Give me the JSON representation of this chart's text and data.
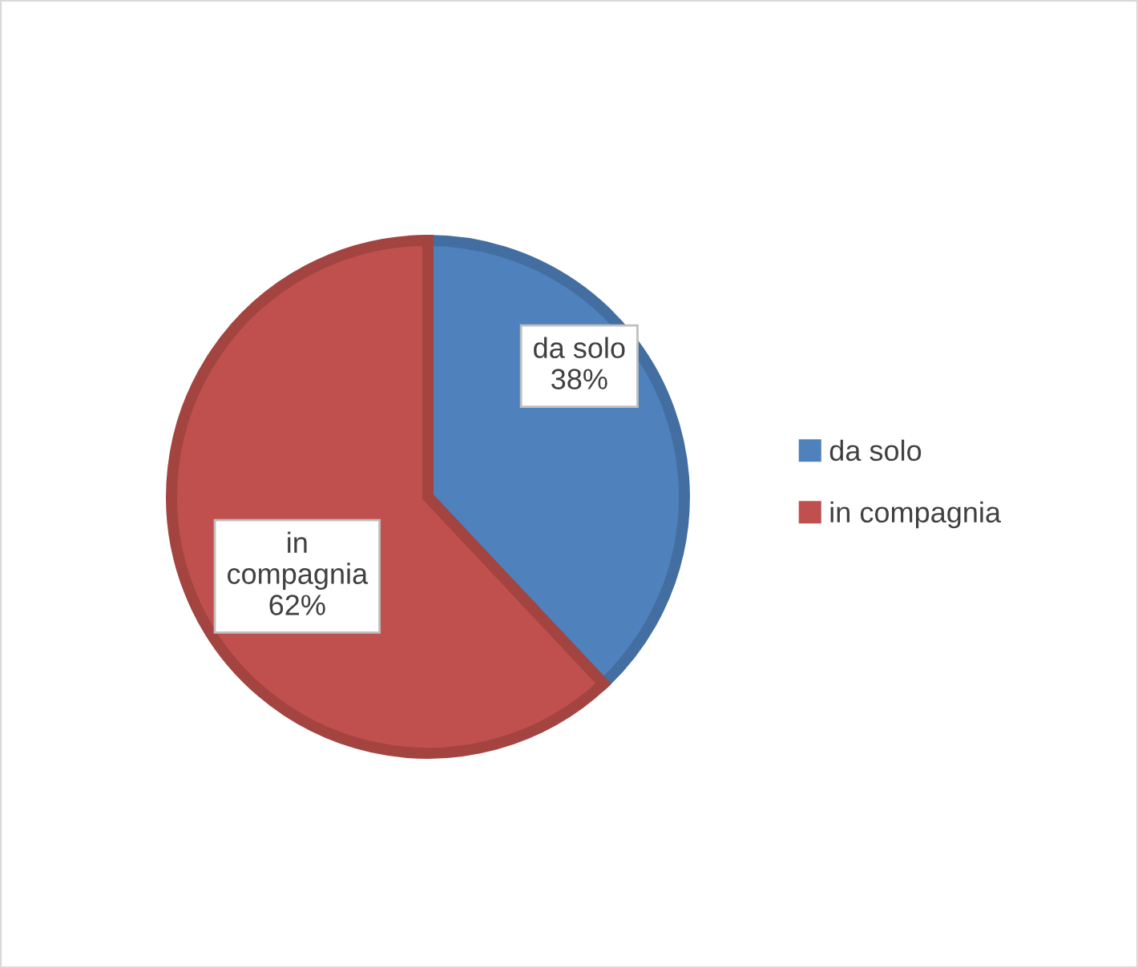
{
  "chart_data": {
    "type": "pie",
    "categories": [
      "da solo",
      "in compagnia"
    ],
    "values": [
      38,
      62
    ],
    "colors": [
      "#4f81bd",
      "#c0504d"
    ],
    "value_labels": [
      "da solo\n38%",
      "in\ncompagnia\n62%"
    ],
    "legend": "right"
  }
}
